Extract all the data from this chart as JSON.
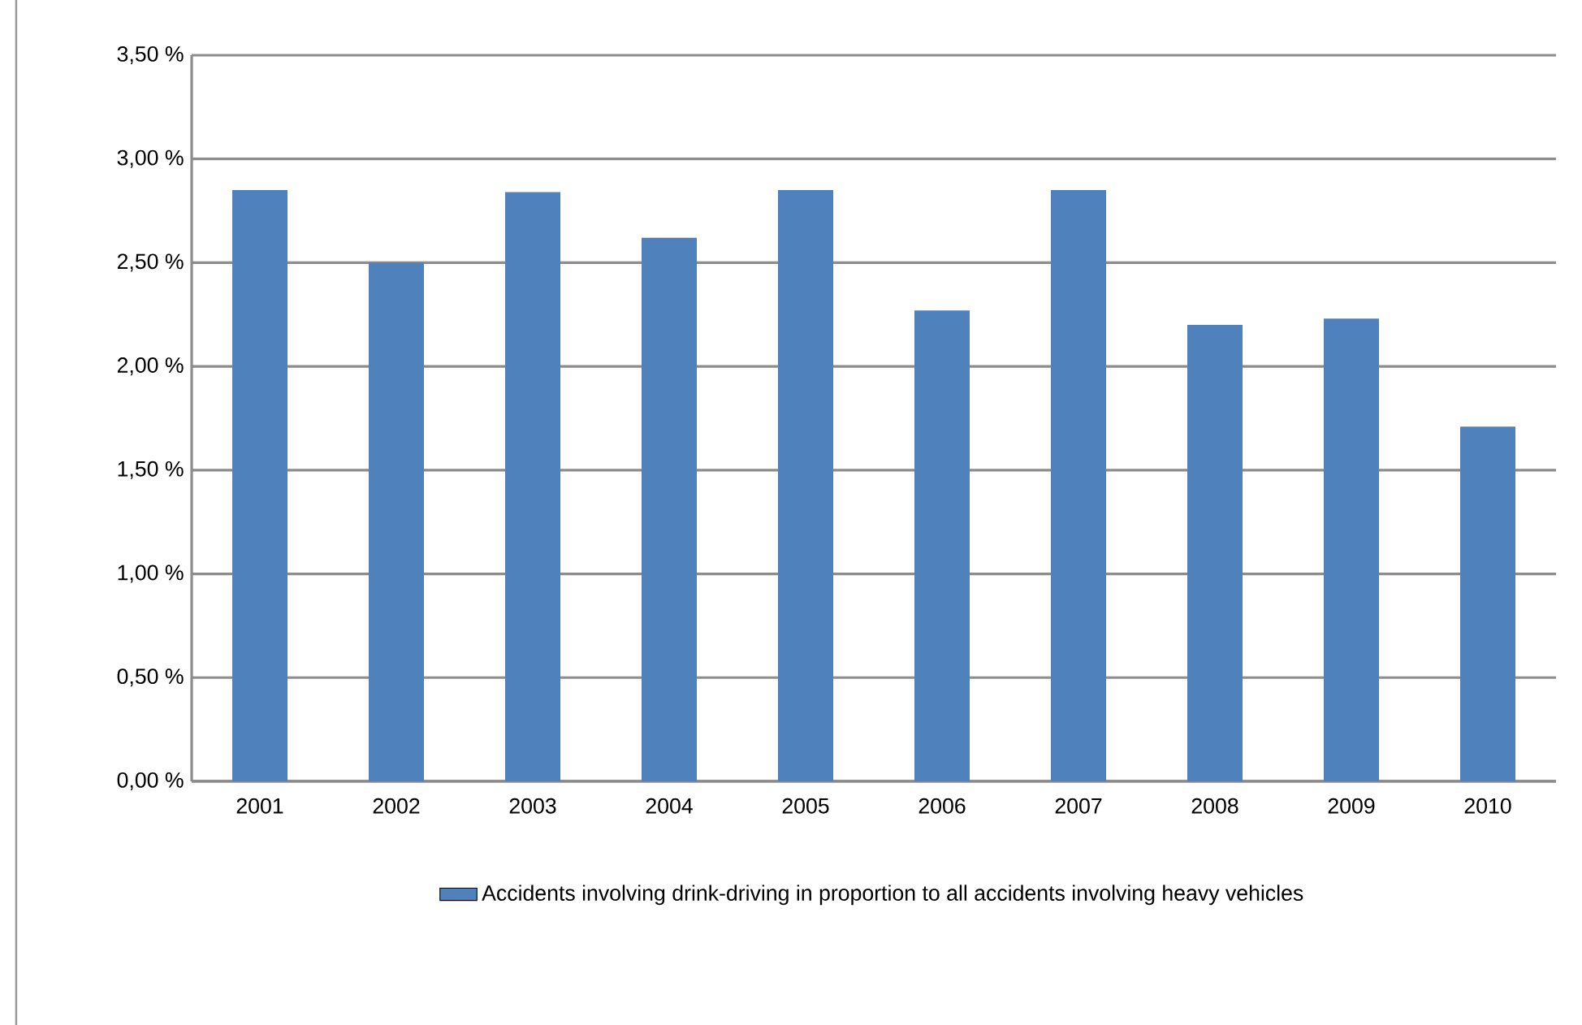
{
  "chart_data": {
    "type": "bar",
    "categories": [
      "2001",
      "2002",
      "2003",
      "2004",
      "2005",
      "2006",
      "2007",
      "2008",
      "2009",
      "2010"
    ],
    "series": [
      {
        "name": "Accidents involving drink-driving in proportion to all accidents involving heavy vehicles",
        "color": "#4f81bd",
        "values": [
          2.85,
          2.5,
          2.84,
          2.62,
          2.85,
          2.27,
          2.85,
          2.2,
          2.23,
          1.71
        ]
      }
    ],
    "ylim": [
      0,
      3.5
    ],
    "yticks": [
      {
        "value": 0,
        "label": "0,00 %"
      },
      {
        "value": 0.5,
        "label": "0,50 %"
      },
      {
        "value": 1,
        "label": "1,00 %"
      },
      {
        "value": 1.5,
        "label": "1,50 %"
      },
      {
        "value": 2,
        "label": "2,00 %"
      },
      {
        "value": 2.5,
        "label": "2,50 %"
      },
      {
        "value": 3,
        "label": "3,00 %"
      },
      {
        "value": 3.5,
        "label": "3,50 %"
      }
    ],
    "grid": "y",
    "legend": "bottom"
  }
}
